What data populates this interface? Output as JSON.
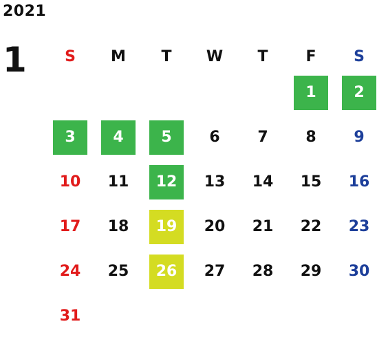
{
  "calendar": {
    "year": "2021",
    "month": "1",
    "weekday_headers": [
      "S",
      "M",
      "T",
      "W",
      "T",
      "F",
      "S"
    ],
    "colors": {
      "sunday": "#e11b1b",
      "saturday": "#1d3f9a",
      "weekday": "#111111",
      "highlight_green": "#3cb44b",
      "highlight_yellow": "#d4dc22"
    },
    "weeks": [
      [
        "",
        "",
        "",
        "",
        "",
        "1",
        "2"
      ],
      [
        "3",
        "4",
        "5",
        "6",
        "7",
        "8",
        "9"
      ],
      [
        "10",
        "11",
        "12",
        "13",
        "14",
        "15",
        "16"
      ],
      [
        "17",
        "18",
        "19",
        "20",
        "21",
        "22",
        "23"
      ],
      [
        "24",
        "25",
        "26",
        "27",
        "28",
        "29",
        "30"
      ],
      [
        "31",
        "",
        "",
        "",
        "",
        "",
        ""
      ]
    ],
    "highlighted_green": [
      "1",
      "2",
      "3",
      "4",
      "5",
      "12"
    ],
    "highlighted_yellow": [
      "19",
      "26"
    ]
  }
}
